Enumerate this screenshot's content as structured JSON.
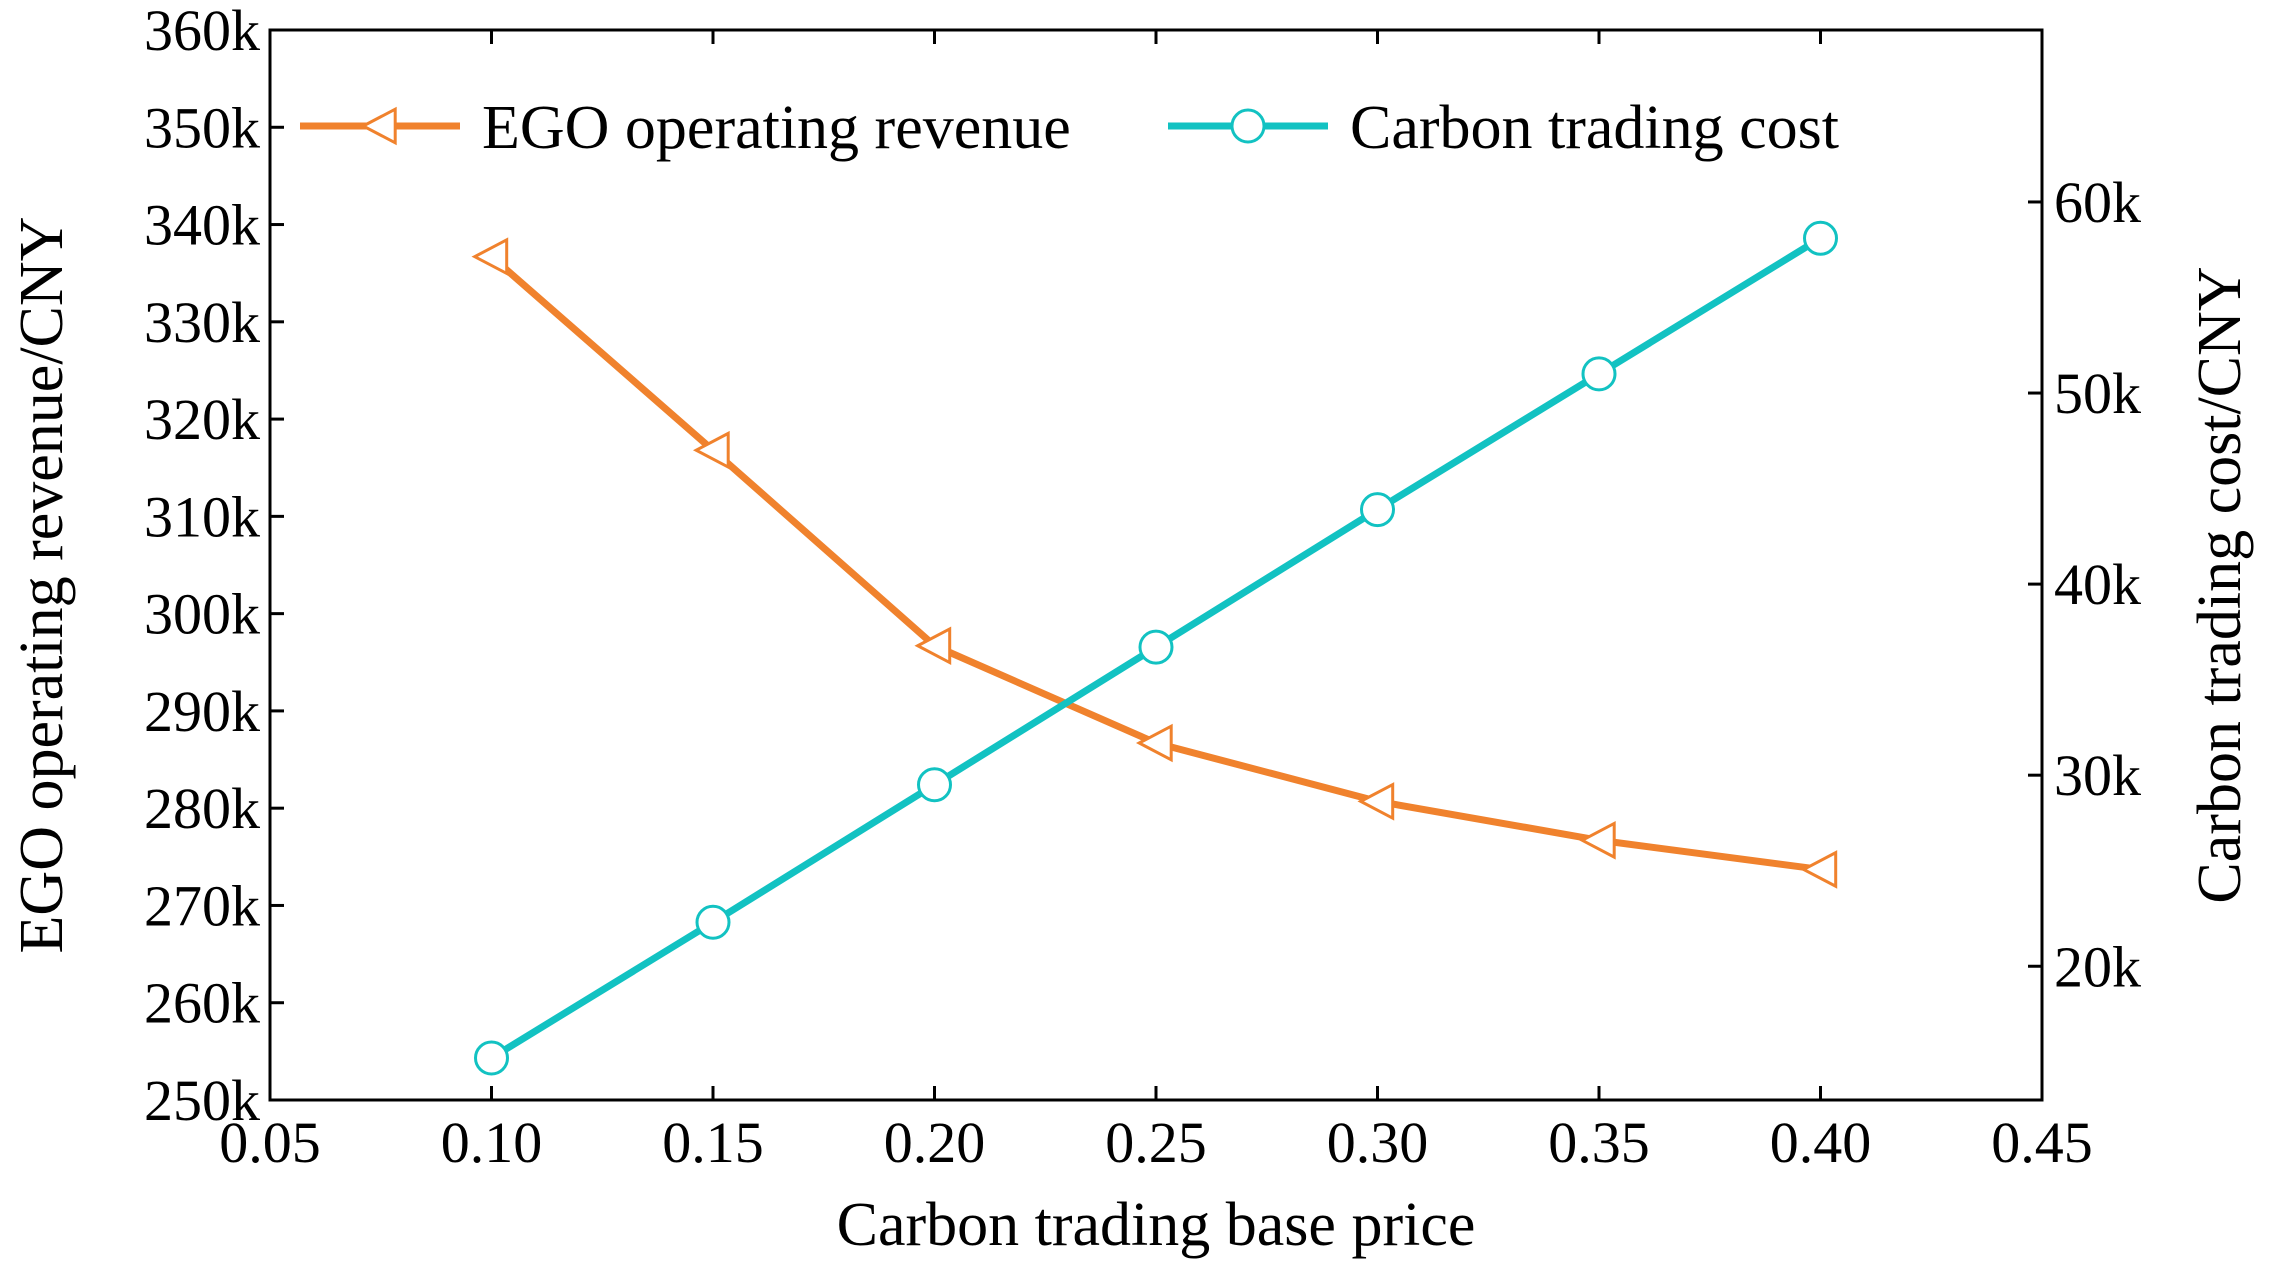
{
  "chart_data": {
    "type": "line",
    "title": "",
    "xlabel": "Carbon trading base price",
    "ylabel_left": "EGO operating revenue/CNY",
    "ylabel_right": "Carbon trading cost/CNY",
    "xlim": [
      0.05,
      0.45
    ],
    "ylim_left": [
      250000,
      360000
    ],
    "ylim_right": [
      13000,
      69000
    ],
    "x_ticks": [
      "0.05",
      "0.10",
      "0.15",
      "0.20",
      "0.25",
      "0.30",
      "0.35",
      "0.40",
      "0.45"
    ],
    "y_left_ticks": [
      "250k",
      "260k",
      "270k",
      "280k",
      "290k",
      "300k",
      "310k",
      "320k",
      "330k",
      "340k",
      "350k",
      "360k"
    ],
    "y_right_ticks": [
      "20k",
      "30k",
      "40k",
      "50k",
      "60k"
    ],
    "legend_position": "top",
    "x": [
      0.1,
      0.15,
      0.2,
      0.25,
      0.3,
      0.35,
      0.4
    ],
    "series": [
      {
        "name": "EGO operating revenue",
        "axis": "left",
        "color": "#f0822d",
        "marker": "triangle-left",
        "values": [
          336700,
          316800,
          296700,
          286700,
          280700,
          276700,
          273700
        ]
      },
      {
        "name": "Carbon trading cost",
        "axis": "right",
        "color": "#12c2c2",
        "marker": "circle",
        "values": [
          15200,
          22300,
          29500,
          36700,
          43900,
          51000,
          58100
        ]
      }
    ]
  }
}
